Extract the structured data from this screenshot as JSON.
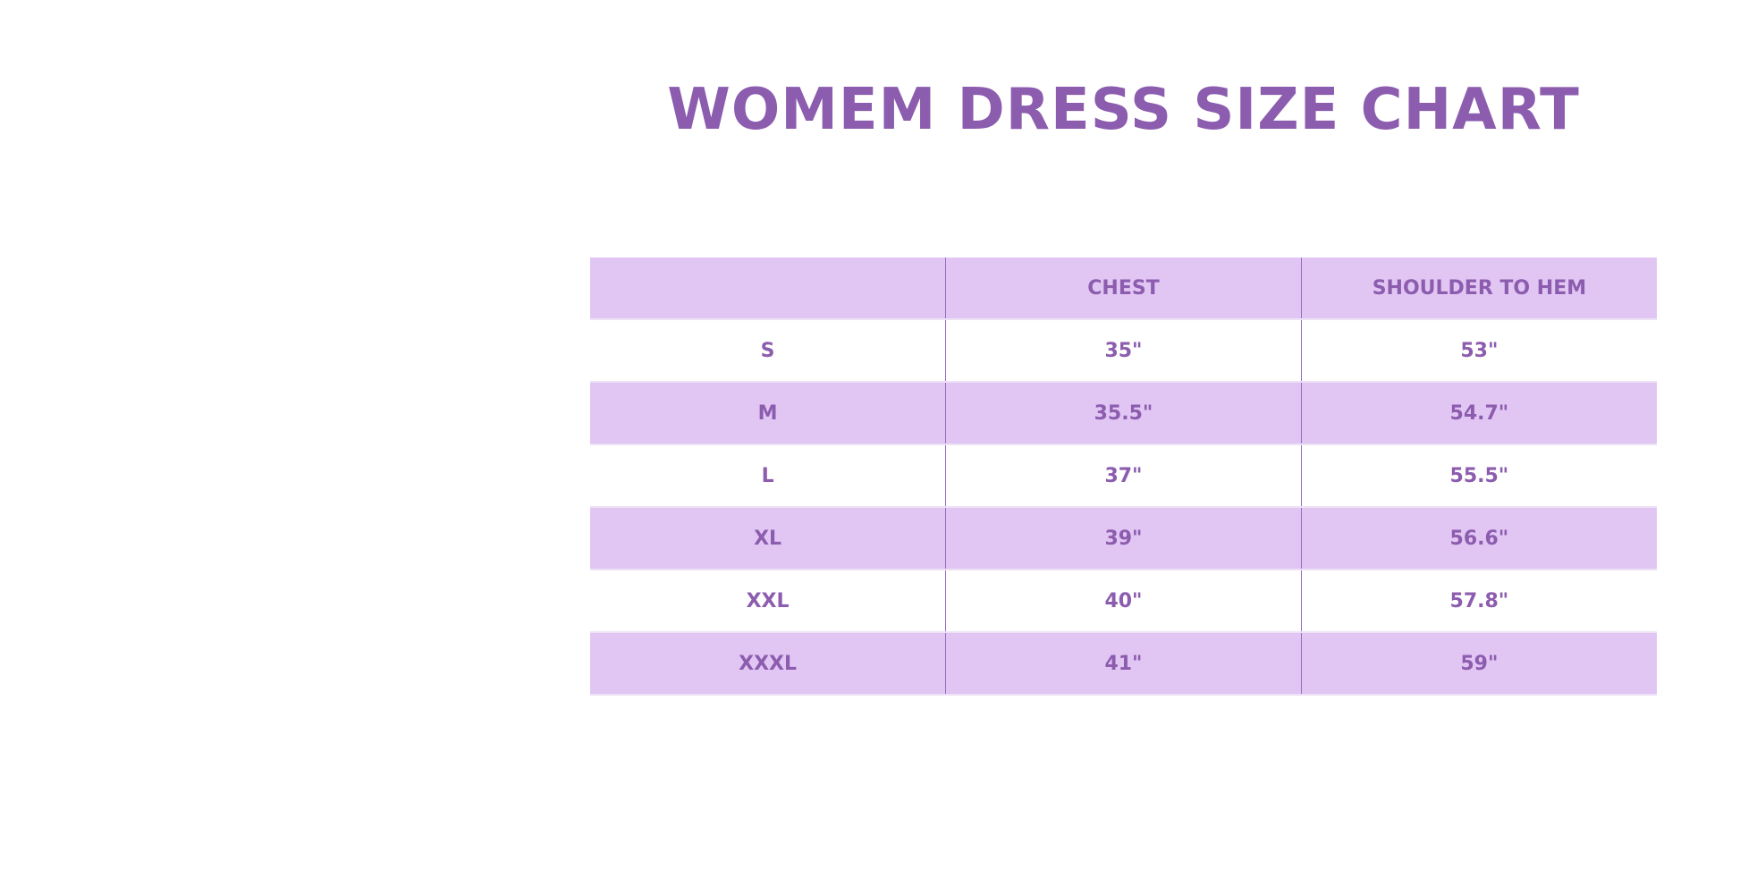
{
  "title": "WOMEM DRESS SIZE CHART",
  "colors": {
    "text": "#8c5cae",
    "row_shade": "#e1c6f4",
    "divider": "#9a6cc0"
  },
  "table": {
    "headers": [
      "",
      "CHEST",
      "SHOULDER TO HEM"
    ],
    "rows": [
      [
        "S",
        "35\"",
        "53\""
      ],
      [
        "M",
        "35.5\"",
        "54.7\""
      ],
      [
        "L",
        "37\"",
        "55.5\""
      ],
      [
        "XL",
        "39\"",
        "56.6\""
      ],
      [
        "XXL",
        "40\"",
        "57.8\""
      ],
      [
        "XXXL",
        "41\"",
        "59\""
      ]
    ]
  }
}
